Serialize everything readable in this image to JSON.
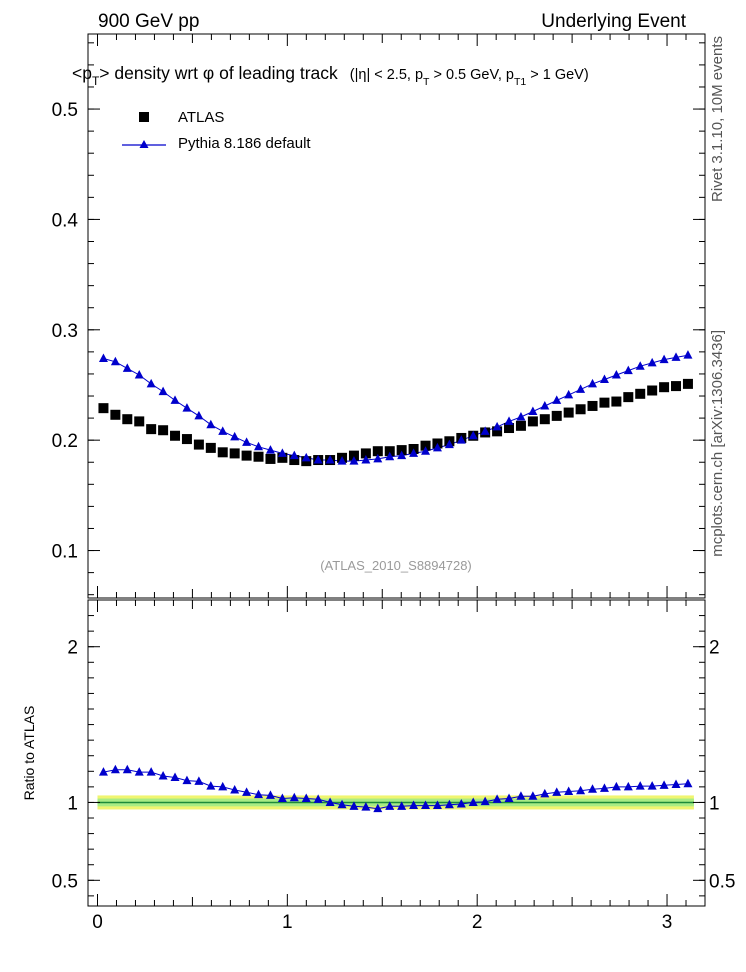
{
  "header": {
    "left": "900 GeV pp",
    "right": "Underlying Event"
  },
  "side_labels": {
    "rivet": "Rivet 3.1.10, 10M events",
    "mcplots": "mcplots.cern.ch [arXiv:1306.3436]"
  },
  "plot_title": {
    "main_a": "<p",
    "main_a_sub": "T",
    "main_b": "> density wrt  φ of leading track",
    "cut_a": "(|η| < 2.5, p",
    "cut_a_sub": "T",
    "cut_b": " > 0.5 GeV, p",
    "cut_b_sub": "T1",
    "cut_c": " > 1 GeV)"
  },
  "watermark": "(ATLAS_2010_S8894728)",
  "colors": {
    "atlas": "#000000",
    "pythia": "#0000cc",
    "band_outer": "#f0f570",
    "band_inner": "#a8ec84",
    "ref_line": "#1d8a3a"
  },
  "chart_data": [
    {
      "type": "scatter",
      "panel": "main",
      "xlim": [
        -0.05,
        3.2
      ],
      "ylim": [
        0.057,
        0.568
      ],
      "yticks": [
        0.1,
        0.2,
        0.3,
        0.4,
        0.5
      ],
      "ytick_labels": [
        "0.1",
        "0.2",
        "0.3",
        "0.4",
        "0.5"
      ],
      "legend_position": "top-left",
      "series": [
        {
          "name": "ATLAS",
          "marker": "square",
          "x": [
            0.0314,
            0.0942,
            0.157,
            0.2199,
            0.2827,
            0.3456,
            0.4084,
            0.4712,
            0.5341,
            0.5969,
            0.6597,
            0.7226,
            0.7854,
            0.8482,
            0.9111,
            0.9739,
            1.0367,
            1.0996,
            1.1624,
            1.2252,
            1.2881,
            1.3509,
            1.4137,
            1.4765,
            1.5394,
            1.6022,
            1.665,
            1.7279,
            1.7907,
            1.8535,
            1.9164,
            1.9792,
            2.042,
            2.1049,
            2.1677,
            2.2305,
            2.2934,
            2.3562,
            2.419,
            2.4819,
            2.5447,
            2.6075,
            2.6704,
            2.7332,
            2.796,
            2.8588,
            2.9217,
            2.9845,
            3.0473,
            3.1102
          ],
          "values": [
            0.229,
            0.223,
            0.219,
            0.217,
            0.21,
            0.209,
            0.204,
            0.201,
            0.196,
            0.193,
            0.189,
            0.188,
            0.186,
            0.185,
            0.183,
            0.184,
            0.182,
            0.181,
            0.182,
            0.182,
            0.184,
            0.186,
            0.188,
            0.19,
            0.19,
            0.191,
            0.192,
            0.195,
            0.197,
            0.199,
            0.202,
            0.204,
            0.207,
            0.208,
            0.211,
            0.213,
            0.217,
            0.219,
            0.222,
            0.225,
            0.228,
            0.231,
            0.234,
            0.235,
            0.239,
            0.242,
            0.245,
            0.248,
            0.249,
            0.251
          ]
        },
        {
          "name": "Pythia 8.186 default",
          "marker": "triangle",
          "x": [
            0.0314,
            0.0942,
            0.157,
            0.2199,
            0.2827,
            0.3456,
            0.4084,
            0.4712,
            0.5341,
            0.5969,
            0.6597,
            0.7226,
            0.7854,
            0.8482,
            0.9111,
            0.9739,
            1.0367,
            1.0996,
            1.1624,
            1.2252,
            1.2881,
            1.3509,
            1.4137,
            1.4765,
            1.5394,
            1.6022,
            1.665,
            1.7279,
            1.7907,
            1.8535,
            1.9164,
            1.9792,
            2.042,
            2.1049,
            2.1677,
            2.2305,
            2.2934,
            2.3562,
            2.419,
            2.4819,
            2.5447,
            2.6075,
            2.6704,
            2.7332,
            2.796,
            2.8588,
            2.9217,
            2.9845,
            3.0473,
            3.1102
          ],
          "values": [
            0.274,
            0.271,
            0.265,
            0.259,
            0.251,
            0.244,
            0.236,
            0.229,
            0.222,
            0.214,
            0.208,
            0.203,
            0.198,
            0.194,
            0.191,
            0.188,
            0.186,
            0.184,
            0.182,
            0.182,
            0.181,
            0.181,
            0.182,
            0.183,
            0.185,
            0.186,
            0.188,
            0.19,
            0.193,
            0.196,
            0.2,
            0.204,
            0.208,
            0.212,
            0.217,
            0.221,
            0.226,
            0.231,
            0.236,
            0.241,
            0.246,
            0.251,
            0.255,
            0.259,
            0.263,
            0.267,
            0.27,
            0.273,
            0.275,
            0.277
          ]
        }
      ]
    },
    {
      "type": "scatter",
      "panel": "ratio",
      "ylabel": "Ratio to ATLAS",
      "xlim": [
        -0.05,
        3.2
      ],
      "ylim": [
        0.335,
        2.3
      ],
      "yticks": [
        0.5,
        1,
        2
      ],
      "ytick_labels": [
        "0.5",
        "1",
        "2"
      ],
      "xticks": [
        0,
        1,
        2,
        3
      ],
      "xtick_labels": [
        "0",
        "1",
        "2",
        "3"
      ],
      "reference": 1,
      "band_outer": [
        0.955,
        1.045
      ],
      "band_inner": [
        0.975,
        1.025
      ],
      "series": [
        {
          "name": "Pythia 8.186 default",
          "marker": "triangle",
          "x": [
            0.0314,
            0.0942,
            0.157,
            0.2199,
            0.2827,
            0.3456,
            0.4084,
            0.4712,
            0.5341,
            0.5969,
            0.6597,
            0.7226,
            0.7854,
            0.8482,
            0.9111,
            0.9739,
            1.0367,
            1.0996,
            1.1624,
            1.2252,
            1.2881,
            1.3509,
            1.4137,
            1.4765,
            1.5394,
            1.6022,
            1.665,
            1.7279,
            1.7907,
            1.8535,
            1.9164,
            1.9792,
            2.042,
            2.1049,
            2.1677,
            2.2305,
            2.2934,
            2.3562,
            2.419,
            2.4819,
            2.5447,
            2.6075,
            2.6704,
            2.7332,
            2.796,
            2.8588,
            2.9217,
            2.9845,
            3.0473,
            3.1102
          ],
          "values": [
            1.195,
            1.21,
            1.21,
            1.195,
            1.195,
            1.17,
            1.16,
            1.14,
            1.135,
            1.105,
            1.1,
            1.08,
            1.065,
            1.05,
            1.045,
            1.025,
            1.03,
            1.025,
            1.02,
            1.0,
            0.985,
            0.975,
            0.97,
            0.96,
            0.975,
            0.975,
            0.98,
            0.98,
            0.98,
            0.985,
            0.99,
            1.0,
            1.005,
            1.02,
            1.025,
            1.04,
            1.04,
            1.055,
            1.065,
            1.07,
            1.075,
            1.085,
            1.09,
            1.1,
            1.1,
            1.105,
            1.105,
            1.11,
            1.115,
            1.12
          ]
        }
      ]
    }
  ]
}
